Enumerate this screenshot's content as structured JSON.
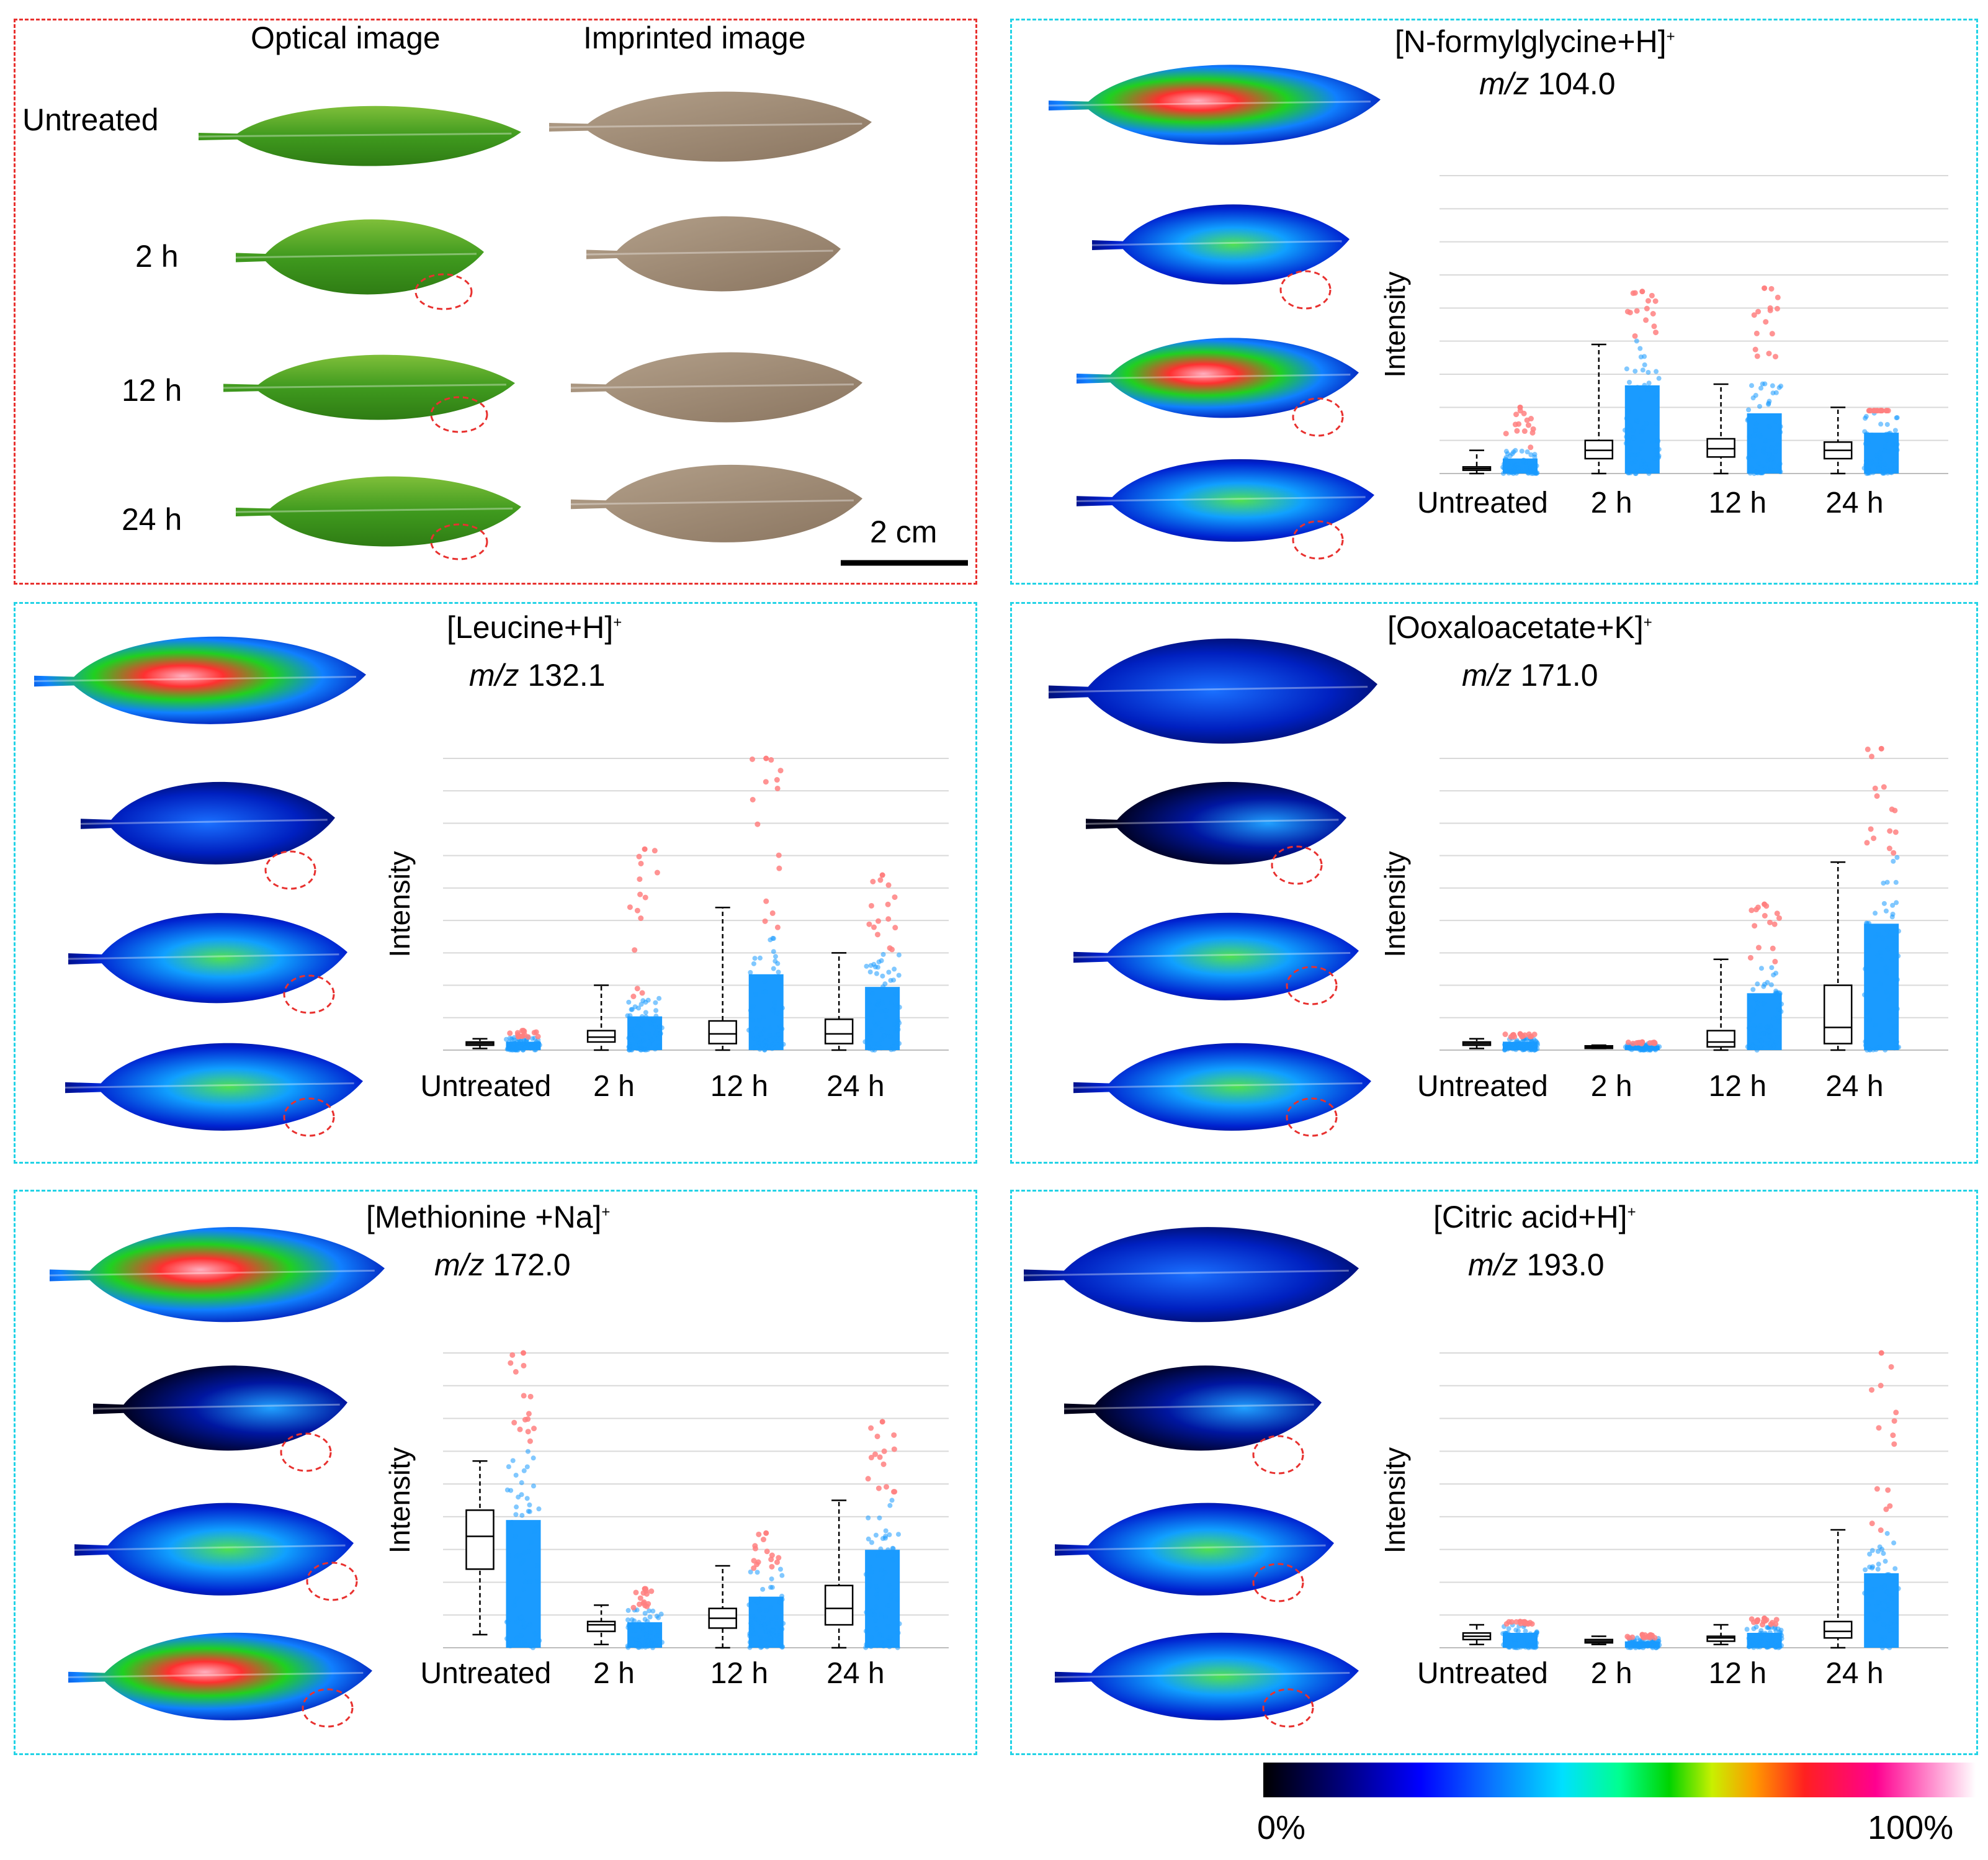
{
  "figure": {
    "optical_header": "Optical image",
    "imprinted_header": "Imprinted image",
    "row_labels": [
      "Untreated",
      "2 h",
      "12 h",
      "24 h"
    ],
    "scale_bar_label": "2 cm",
    "colorbar": {
      "min_label": "0%",
      "max_label": "100%"
    },
    "colors": {
      "red_panel": "#e8312f",
      "cyan_panel": "#22d3e6",
      "scatter_blue": "#1a9bff",
      "outlier_red": "#ff8080"
    }
  },
  "panels": [
    {
      "title_main": "[N-formylglycine+H]",
      "title_sup": "+",
      "mz_prefix": "m/z",
      "mz_value": "104.0"
    },
    {
      "title_main": "[Leucine+H]",
      "title_sup": "+",
      "mz_prefix": "m/z",
      "mz_value": "132.1"
    },
    {
      "title_main": "[Ooxaloacetate+K]",
      "title_sup": "+",
      "mz_prefix": "m/z",
      "mz_value": "171.0"
    },
    {
      "title_main": "[Methionine +Na]",
      "title_sup": "+",
      "mz_prefix": "m/z",
      "mz_value": "172.0"
    },
    {
      "title_main": "[Citric acid+H]",
      "title_sup": "+",
      "mz_prefix": "m/z",
      "mz_value": "193.0"
    }
  ],
  "chart_data": [
    {
      "type": "box",
      "title": "[N-formylglycine+H]+ m/z 104.0",
      "ylabel": "Intensity",
      "ylim": [
        0,
        9
      ],
      "categories": [
        "Untreated",
        "2 h",
        "12 h",
        "24 h"
      ],
      "whisker_low": [
        0.0,
        0.0,
        0.0,
        0.0
      ],
      "q1": [
        0.1,
        0.45,
        0.5,
        0.45
      ],
      "median": [
        0.15,
        0.7,
        0.75,
        0.7
      ],
      "q3": [
        0.2,
        1.0,
        1.05,
        0.95
      ],
      "whisker_high": [
        0.7,
        3.9,
        2.7,
        2.0
      ],
      "max_points": [
        2.0,
        5.5,
        5.6,
        1.9
      ],
      "dense_top": [
        0.7,
        4.1,
        2.8,
        1.9
      ]
    },
    {
      "type": "box",
      "title": "[Leucine+H]+ m/z 132.1",
      "ylabel": "Intensity",
      "ylim": [
        0,
        9
      ],
      "categories": [
        "Untreated",
        "2 h",
        "12 h",
        "24 h"
      ],
      "whisker_low": [
        0.05,
        0.0,
        0.0,
        0.0
      ],
      "q1": [
        0.15,
        0.25,
        0.2,
        0.2
      ],
      "median": [
        0.2,
        0.4,
        0.5,
        0.5
      ],
      "q3": [
        0.25,
        0.6,
        0.9,
        0.95
      ],
      "whisker_high": [
        0.35,
        2.0,
        4.4,
        3.0
      ],
      "max_points": [
        0.6,
        6.2,
        9.0,
        5.4
      ],
      "dense_top": [
        0.4,
        1.6,
        3.6,
        3.0
      ]
    },
    {
      "type": "box",
      "title": "[Ooxaloacetate+K]+ m/z 171.0",
      "ylabel": "Intensity",
      "ylim": [
        0,
        9
      ],
      "categories": [
        "Untreated",
        "2 h",
        "12 h",
        "24 h"
      ],
      "whisker_low": [
        0.05,
        0.05,
        0.0,
        0.0
      ],
      "q1": [
        0.15,
        0.08,
        0.1,
        0.2
      ],
      "median": [
        0.2,
        0.1,
        0.25,
        0.7
      ],
      "q3": [
        0.25,
        0.13,
        0.6,
        2.0
      ],
      "whisker_high": [
        0.35,
        0.15,
        2.8,
        5.8
      ],
      "max_points": [
        0.5,
        0.25,
        4.5,
        9.3
      ],
      "dense_top": [
        0.4,
        0.2,
        2.7,
        6.0
      ]
    },
    {
      "type": "box",
      "title": "[Methionine +Na]+ m/z 172.0",
      "ylabel": "Intensity",
      "ylim": [
        0,
        9
      ],
      "categories": [
        "Untreated",
        "2 h",
        "12 h",
        "24 h"
      ],
      "whisker_low": [
        0.4,
        0.1,
        0.0,
        0.0
      ],
      "q1": [
        2.4,
        0.5,
        0.6,
        0.7
      ],
      "median": [
        3.4,
        0.7,
        0.9,
        1.2
      ],
      "q3": [
        4.2,
        0.8,
        1.2,
        1.9
      ],
      "whisker_high": [
        5.7,
        1.3,
        2.5,
        4.5
      ],
      "max_points": [
        9.0,
        1.8,
        3.5,
        6.9
      ],
      "dense_top": [
        6.0,
        1.2,
        2.4,
        4.6
      ]
    },
    {
      "type": "box",
      "title": "[Citric acid+H]+ m/z 193.0",
      "ylabel": "Intensity",
      "ylim": [
        0,
        9
      ],
      "categories": [
        "Untreated",
        "2 h",
        "12 h",
        "24 h"
      ],
      "whisker_low": [
        0.1,
        0.1,
        0.1,
        0.0
      ],
      "q1": [
        0.25,
        0.15,
        0.2,
        0.3
      ],
      "median": [
        0.35,
        0.2,
        0.3,
        0.5
      ],
      "q3": [
        0.45,
        0.25,
        0.35,
        0.8
      ],
      "whisker_high": [
        0.7,
        0.35,
        0.7,
        3.6
      ],
      "max_points": [
        0.8,
        0.4,
        0.9,
        9.0
      ],
      "dense_top": [
        0.7,
        0.3,
        0.7,
        3.5
      ]
    }
  ]
}
